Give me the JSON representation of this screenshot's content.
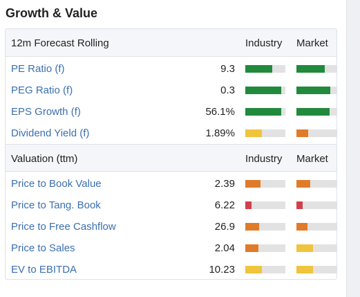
{
  "title": "Growth & Value",
  "colors": {
    "green": "#218a3c",
    "yellow": "#f0c43c",
    "orange": "#e07b2a",
    "red": "#d2404a",
    "track": "#e2e2e2",
    "link": "#3a6fb0"
  },
  "forecast": {
    "header": {
      "label": "12m Forecast Rolling",
      "industry": "Industry",
      "market": "Market"
    },
    "rows": [
      {
        "name": "PE Ratio (f)",
        "value": "9.3",
        "industry": {
          "level": 0.68,
          "color": "green"
        },
        "market": {
          "level": 0.7,
          "color": "green"
        }
      },
      {
        "name": "PEG Ratio (f)",
        "value": "0.3",
        "industry": {
          "level": 0.9,
          "color": "green"
        },
        "market": {
          "level": 0.85,
          "color": "green"
        }
      },
      {
        "name": "EPS Growth (f)",
        "value": "56.1%",
        "industry": {
          "level": 0.9,
          "color": "green"
        },
        "market": {
          "level": 0.82,
          "color": "green"
        }
      },
      {
        "name": "Dividend Yield (f)",
        "value": "1.89%",
        "industry": {
          "level": 0.42,
          "color": "yellow"
        },
        "market": {
          "level": 0.3,
          "color": "orange"
        }
      }
    ]
  },
  "valuation": {
    "header": {
      "label": "Valuation (ttm)",
      "industry": "Industry",
      "market": "Market"
    },
    "rows": [
      {
        "name": "Price to Book Value",
        "value": "2.39",
        "industry": {
          "level": 0.38,
          "color": "orange"
        },
        "market": {
          "level": 0.34,
          "color": "orange"
        }
      },
      {
        "name": "Price to Tang. Book",
        "value": "6.22",
        "industry": {
          "level": 0.15,
          "color": "red"
        },
        "market": {
          "level": 0.15,
          "color": "red"
        }
      },
      {
        "name": "Price to Free Cashflow",
        "value": "26.9",
        "industry": {
          "level": 0.34,
          "color": "orange"
        },
        "market": {
          "level": 0.28,
          "color": "orange"
        }
      },
      {
        "name": "Price to Sales",
        "value": "2.04",
        "industry": {
          "level": 0.32,
          "color": "orange"
        },
        "market": {
          "level": 0.42,
          "color": "yellow"
        }
      },
      {
        "name": "EV to EBITDA",
        "value": "10.23",
        "industry": {
          "level": 0.42,
          "color": "yellow"
        },
        "market": {
          "level": 0.42,
          "color": "yellow"
        }
      }
    ]
  }
}
